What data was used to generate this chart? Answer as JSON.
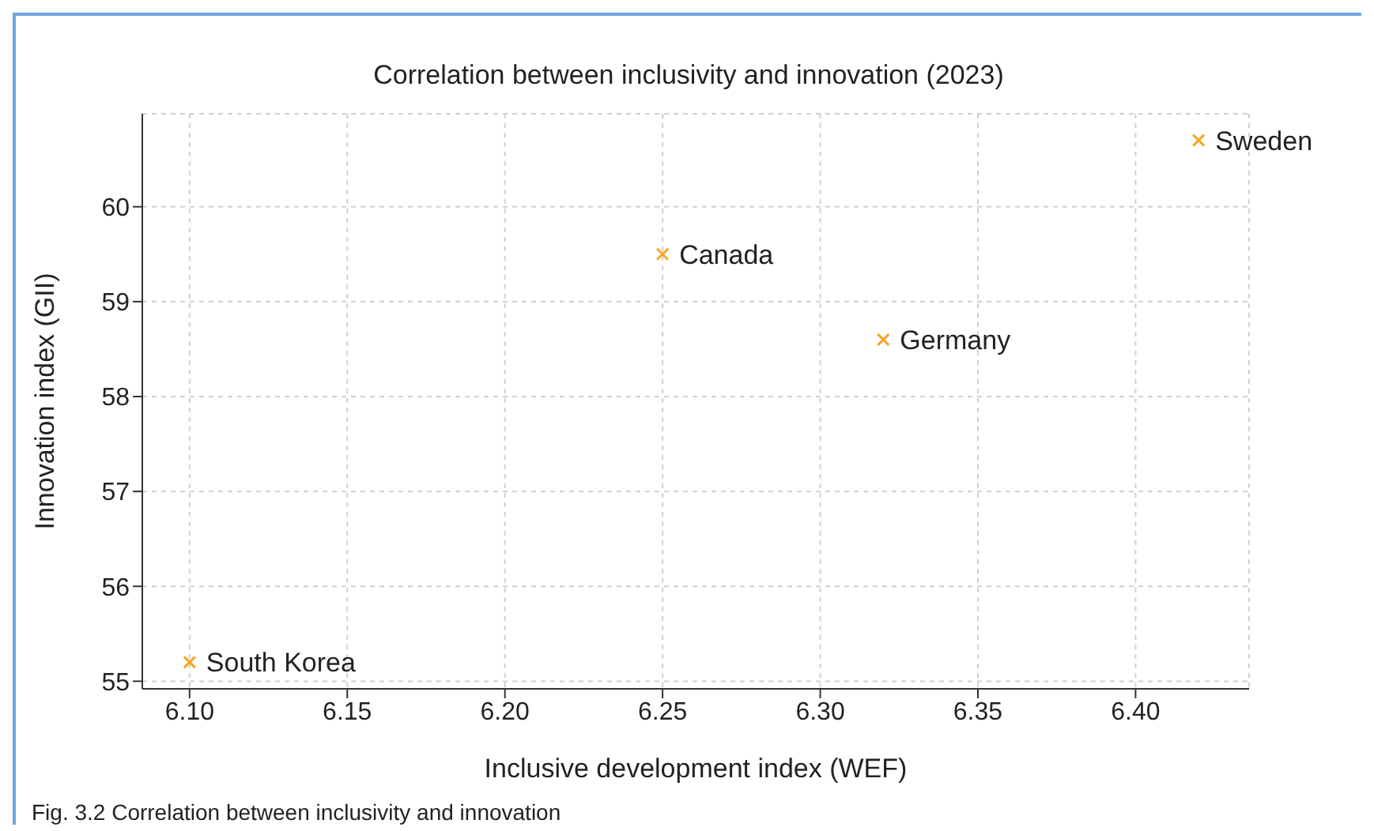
{
  "chart_data": {
    "type": "scatter",
    "title": "Correlation between inclusivity and innovation (2023)",
    "xlabel": "Inclusive development index (WEF)",
    "ylabel": "Innovation index (GII)",
    "series": [
      {
        "name": "South Korea",
        "color": "#f5a623",
        "x": [
          6.1
        ],
        "values": [
          55.2
        ]
      },
      {
        "name": "Canada",
        "color": "#f5a623",
        "x": [
          6.25
        ],
        "values": [
          59.5
        ]
      },
      {
        "name": "Germany",
        "color": "#f5a623",
        "x": [
          6.32
        ],
        "values": [
          58.6
        ]
      },
      {
        "name": "Sweden",
        "color": "#f5a623",
        "x": [
          6.42
        ],
        "values": [
          60.7
        ]
      }
    ],
    "xlim": [
      6.085,
      6.436
    ],
    "xticks": [
      {
        "value": 6.1,
        "label": "6.10"
      },
      6.15,
      {
        "value": 6.2,
        "label": "6.20"
      },
      6.25,
      {
        "value": 6.3,
        "label": "6.30"
      },
      6.35,
      {
        "value": 6.4,
        "label": "6.40"
      }
    ],
    "ylim": [
      54.92,
      60.98
    ],
    "yticks": [
      55,
      56,
      57,
      58,
      59,
      60
    ],
    "grid": true,
    "legend": false,
    "marker": "cross",
    "annotations": [
      "Fig. 3.2 Correlation between inclusivity and innovation"
    ]
  }
}
